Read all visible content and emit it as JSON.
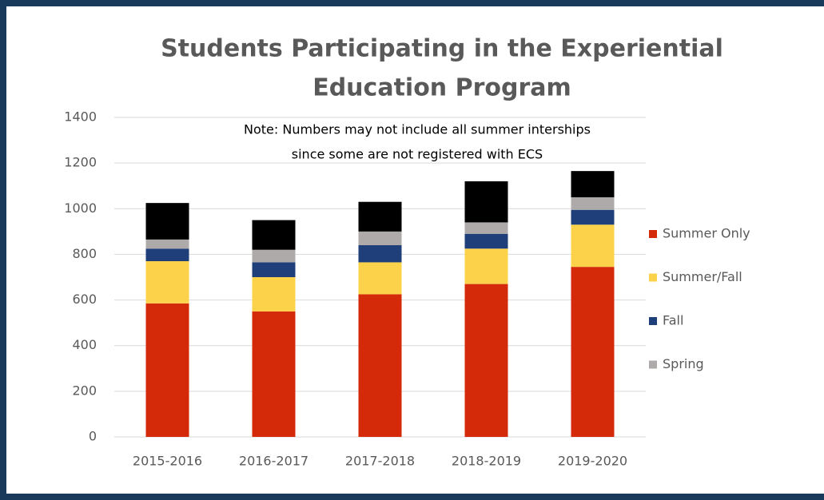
{
  "chart_data": {
    "type": "stacked_bar",
    "title": [
      "Students Participating in the Experiential",
      "Education Program"
    ],
    "annotations": [
      "Note: Numbers may not include all summer interships",
      "since some are not registered with ECS"
    ],
    "categories": [
      "2015-2016",
      "2016-2017",
      "2017-2018",
      "2018-2019",
      "2019-2020"
    ],
    "series": [
      {
        "name": "Summer Only",
        "color": "#d42a0a",
        "values": [
          585,
          550,
          625,
          670,
          745
        ]
      },
      {
        "name": "Summer/Fall",
        "color": "#fcd24a",
        "values": [
          185,
          150,
          140,
          155,
          185
        ]
      },
      {
        "name": "Fall",
        "color": "#1f3f7a",
        "values": [
          55,
          65,
          75,
          65,
          65
        ]
      },
      {
        "name": "Spring",
        "color": "#aeaaaa",
        "values": [
          40,
          55,
          60,
          50,
          55
        ]
      },
      {
        "color": "#000000",
        "values": [
          160,
          130,
          130,
          180,
          115
        ]
      }
    ],
    "ylim": [
      0,
      1400
    ],
    "yticks": [
      0,
      200,
      400,
      600,
      800,
      1000,
      1200,
      1400
    ],
    "grid": true,
    "legend": "right"
  }
}
